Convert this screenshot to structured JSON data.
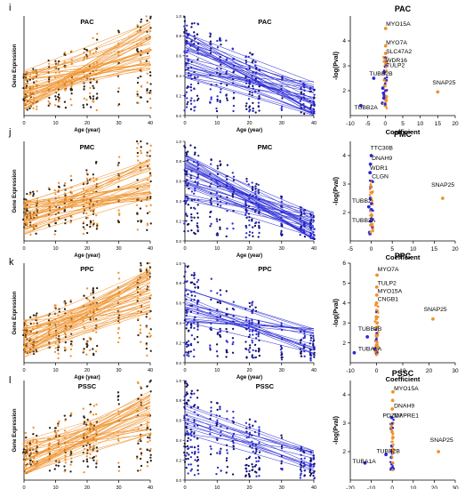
{
  "chart_data": [
    {
      "row": "i",
      "region": "PAC",
      "kind": "trend-increasing",
      "title": "PAC",
      "xlabel": "Age (year)",
      "ylabel": "Gene Expression",
      "xticks": [
        "0",
        "10",
        "20",
        "30",
        "40"
      ],
      "xlim": [
        0,
        40
      ],
      "ylim": [
        0,
        1
      ],
      "color": "#f0922e",
      "lines": 45,
      "start_range": [
        0.05,
        0.45
      ],
      "end_range": [
        0.45,
        0.95
      ]
    },
    {
      "row": "i",
      "region": "PAC",
      "kind": "trend-decreasing",
      "title": "PAC",
      "xlabel": "Age (year)",
      "ylabel": "",
      "xticks": [
        "0",
        "10",
        "20",
        "30",
        "40"
      ],
      "yticks": [
        "0.0",
        "0.2",
        "0.4",
        "0.6",
        "0.8",
        "1.0"
      ],
      "xlim": [
        0,
        40
      ],
      "ylim": [
        0,
        1
      ],
      "color": "#2a2ad6",
      "lines": 35,
      "start_range": [
        0.35,
        0.85
      ],
      "end_range": [
        0.0,
        0.35
      ]
    },
    {
      "row": "i",
      "region": "PAC",
      "type": "scatter",
      "title": "PAC",
      "xlabel": "Coefficient",
      "ylabel": "-log(Pval)",
      "xlim": [
        -10,
        20
      ],
      "ylim": [
        1,
        5
      ],
      "xticks": [
        "-10",
        "-5",
        "0",
        "5",
        "10",
        "15",
        "20"
      ],
      "yticks": [
        "2",
        "3",
        "4"
      ],
      "labels": [
        {
          "text": "MYO15A",
          "x": 0.2,
          "y": 4.6
        },
        {
          "text": "MYO7A",
          "x": 0.2,
          "y": 3.85
        },
        {
          "text": "SLC47A2",
          "x": 0.2,
          "y": 3.5
        },
        {
          "text": "WDR16",
          "x": 0.2,
          "y": 3.15
        },
        {
          "text": "TULP2",
          "x": 0.2,
          "y": 2.95
        },
        {
          "text": "TUBB2B",
          "x": -4.6,
          "y": 2.6
        },
        {
          "text": "TUBB2A",
          "x": -8.9,
          "y": 1.25
        },
        {
          "text": "SNAP25",
          "x": 13.5,
          "y": 2.25
        }
      ],
      "points": [
        {
          "x": 0.1,
          "y": 4.5,
          "c": "o"
        },
        {
          "x": 0.1,
          "y": 3.8,
          "c": "o"
        },
        {
          "x": 0.1,
          "y": 3.5,
          "c": "o"
        },
        {
          "x": 0.1,
          "y": 3.2,
          "c": "o"
        },
        {
          "x": 0.0,
          "y": 3.0,
          "c": "o"
        },
        {
          "x": -0.2,
          "y": 2.7,
          "c": "o"
        },
        {
          "x": 0.2,
          "y": 2.4,
          "c": "o"
        },
        {
          "x": -0.1,
          "y": 2.2,
          "c": "o"
        },
        {
          "x": 0.1,
          "y": 2.0,
          "c": "o"
        },
        {
          "x": -0.3,
          "y": 1.8,
          "c": "o"
        },
        {
          "x": 0.2,
          "y": 1.6,
          "c": "o"
        },
        {
          "x": 0.0,
          "y": 1.4,
          "c": "o"
        },
        {
          "x": -0.5,
          "y": 1.9,
          "c": "b"
        },
        {
          "x": -0.7,
          "y": 2.1,
          "c": "b"
        },
        {
          "x": -0.4,
          "y": 1.7,
          "c": "b"
        },
        {
          "x": -3.3,
          "y": 2.5,
          "c": "b"
        },
        {
          "x": -7.0,
          "y": 1.4,
          "c": "b"
        },
        {
          "x": -0.8,
          "y": 1.5,
          "c": "b"
        },
        {
          "x": 15.0,
          "y": 1.95,
          "c": "o"
        }
      ]
    },
    {
      "row": "j",
      "region": "PMC",
      "kind": "trend-increasing",
      "title": "PMC",
      "xlabel": "Age (year)",
      "ylabel": "Gene Expression",
      "xticks": [
        "0",
        "10",
        "20",
        "30",
        "40"
      ],
      "xlim": [
        0,
        40
      ],
      "ylim": [
        0,
        1
      ],
      "color": "#f0922e",
      "lines": 40,
      "start_range": [
        0.05,
        0.4
      ],
      "end_range": [
        0.4,
        0.85
      ]
    },
    {
      "row": "j",
      "region": "PMC",
      "kind": "trend-decreasing",
      "title": "PMC",
      "xlabel": "Age (year)",
      "ylabel": "",
      "xticks": [
        "0",
        "10",
        "20",
        "30",
        "40"
      ],
      "yticks": [
        "0.0",
        "0.2",
        "0.4",
        "0.6",
        "0.8",
        "1.0"
      ],
      "xlim": [
        0,
        40
      ],
      "ylim": [
        0,
        1
      ],
      "color": "#2a2ad6",
      "lines": 35,
      "start_range": [
        0.4,
        0.9
      ],
      "end_range": [
        0.0,
        0.3
      ]
    },
    {
      "row": "j",
      "region": "PMC",
      "type": "scatter",
      "title": "PMC",
      "xlabel": "Coefficient",
      "ylabel": "-log(Pval)",
      "xlim": [
        -5,
        20
      ],
      "ylim": [
        1,
        4.5
      ],
      "xticks": [
        "-5",
        "0",
        "5",
        "10",
        "15",
        "20"
      ],
      "yticks": [
        "2",
        "3",
        "4"
      ],
      "labels": [
        {
          "text": "TTC30B",
          "x": -0.2,
          "y": 4.2
        },
        {
          "text": "DNAH9",
          "x": 0.1,
          "y": 3.85
        },
        {
          "text": "WDR1",
          "x": -0.3,
          "y": 3.5
        },
        {
          "text": "CLGN",
          "x": 0.1,
          "y": 3.2
        },
        {
          "text": "TUBB2",
          "x": -4.6,
          "y": 2.35
        },
        {
          "text": "TUBB2A",
          "x": -4.6,
          "y": 1.65
        },
        {
          "text": "SNAP25",
          "x": 14.3,
          "y": 2.9
        }
      ],
      "points": [
        {
          "x": 0.0,
          "y": 4.0,
          "c": "b"
        },
        {
          "x": -0.2,
          "y": 3.7,
          "c": "b"
        },
        {
          "x": -0.3,
          "y": 3.4,
          "c": "b"
        },
        {
          "x": 0.0,
          "y": 3.1,
          "c": "o"
        },
        {
          "x": -0.1,
          "y": 2.9,
          "c": "b"
        },
        {
          "x": 0.1,
          "y": 2.7,
          "c": "o"
        },
        {
          "x": -0.2,
          "y": 2.5,
          "c": "b"
        },
        {
          "x": 0.2,
          "y": 2.3,
          "c": "o"
        },
        {
          "x": 0.0,
          "y": 2.1,
          "c": "b"
        },
        {
          "x": 0.1,
          "y": 1.9,
          "c": "o"
        },
        {
          "x": -0.1,
          "y": 1.7,
          "c": "b"
        },
        {
          "x": 0.3,
          "y": 1.5,
          "c": "o"
        },
        {
          "x": -0.4,
          "y": 1.3,
          "c": "b"
        },
        {
          "x": -0.6,
          "y": 2.2,
          "c": "b"
        },
        {
          "x": 17.0,
          "y": 2.5,
          "c": "o"
        }
      ]
    },
    {
      "row": "k",
      "region": "PPC",
      "kind": "trend-increasing",
      "title": "PPC",
      "xlabel": "Age (year)",
      "ylabel": "Gene Expression",
      "xticks": [
        "0",
        "10",
        "20",
        "30",
        "40"
      ],
      "xlim": [
        0,
        40
      ],
      "ylim": [
        0,
        1
      ],
      "color": "#f0922e",
      "lines": 45,
      "start_range": [
        0.05,
        0.45
      ],
      "end_range": [
        0.5,
        0.95
      ]
    },
    {
      "row": "k",
      "region": "PPC",
      "kind": "trend-decreasing",
      "title": "PPC",
      "xlabel": "Age (year)",
      "ylabel": "",
      "xticks": [
        "0",
        "10",
        "20",
        "30",
        "40"
      ],
      "yticks": [
        "0.0",
        "0.2",
        "0.4",
        "0.6",
        "0.8",
        "1.0"
      ],
      "xlim": [
        0,
        40
      ],
      "ylim": [
        0,
        1
      ],
      "color": "#2a2ad6",
      "lines": 20,
      "start_range": [
        0.4,
        0.75
      ],
      "end_range": [
        0.05,
        0.35
      ]
    },
    {
      "row": "k",
      "region": "PPC",
      "type": "scatter",
      "title": "PPC",
      "xlabel": "Coefficient",
      "ylabel": "-log(Pval)",
      "xlim": [
        -10,
        30
      ],
      "ylim": [
        1,
        6
      ],
      "xticks": [
        "-10",
        "0",
        "10",
        "20",
        "30"
      ],
      "yticks": [
        "2",
        "3",
        "4",
        "5",
        "6"
      ],
      "labels": [
        {
          "text": "MYO7A",
          "x": 0.4,
          "y": 5.6
        },
        {
          "text": "TULP2",
          "x": 0.4,
          "y": 4.9
        },
        {
          "text": "MYO15A",
          "x": 0.4,
          "y": 4.5
        },
        {
          "text": "CNGB1",
          "x": 0.4,
          "y": 4.1
        },
        {
          "text": "TUBB2B",
          "x": -7.0,
          "y": 2.6
        },
        {
          "text": "TUBA1A",
          "x": -7.0,
          "y": 1.6
        },
        {
          "text": "SNAP25",
          "x": 18.0,
          "y": 3.6
        }
      ],
      "points": [
        {
          "x": 0.2,
          "y": 5.4,
          "c": "o"
        },
        {
          "x": 0.1,
          "y": 4.8,
          "c": "o"
        },
        {
          "x": 0.1,
          "y": 4.4,
          "c": "o"
        },
        {
          "x": 0.0,
          "y": 4.0,
          "c": "o"
        },
        {
          "x": 0.2,
          "y": 3.6,
          "c": "o"
        },
        {
          "x": -0.1,
          "y": 3.3,
          "c": "o"
        },
        {
          "x": 0.2,
          "y": 3.0,
          "c": "o"
        },
        {
          "x": -0.3,
          "y": 2.7,
          "c": "b"
        },
        {
          "x": 0.1,
          "y": 2.4,
          "c": "o"
        },
        {
          "x": -0.2,
          "y": 2.1,
          "c": "b"
        },
        {
          "x": 0.0,
          "y": 1.9,
          "c": "o"
        },
        {
          "x": -0.6,
          "y": 1.7,
          "c": "b"
        },
        {
          "x": 0.3,
          "y": 1.5,
          "c": "o"
        },
        {
          "x": -3.5,
          "y": 2.3,
          "c": "b"
        },
        {
          "x": -8.5,
          "y": 1.5,
          "c": "b"
        },
        {
          "x": 21.5,
          "y": 3.2,
          "c": "o"
        }
      ]
    },
    {
      "row": "l",
      "region": "PSSC",
      "kind": "trend-increasing",
      "title": "PSSC",
      "xlabel": "Age (year)",
      "ylabel": "Gene Expression",
      "xticks": [
        "0",
        "10",
        "20",
        "30",
        "40"
      ],
      "xlim": [
        0,
        40
      ],
      "ylim": [
        0,
        1
      ],
      "color": "#f0922e",
      "lines": 40,
      "start_range": [
        0.05,
        0.4
      ],
      "end_range": [
        0.45,
        0.9
      ]
    },
    {
      "row": "l",
      "region": "PSSC",
      "kind": "trend-decreasing",
      "title": "PSSC",
      "xlabel": "Age (year)",
      "ylabel": "",
      "xticks": [
        "0",
        "10",
        "20",
        "30",
        "40"
      ],
      "yticks": [
        "0.0",
        "0.2",
        "0.4",
        "0.6",
        "0.8",
        "1.0"
      ],
      "xlim": [
        0,
        40
      ],
      "ylim": [
        0,
        1
      ],
      "color": "#2a2ad6",
      "lines": 15,
      "start_range": [
        0.45,
        0.8
      ],
      "end_range": [
        0.05,
        0.3
      ]
    },
    {
      "row": "l",
      "region": "PSSC",
      "type": "scatter",
      "title": "PSSC",
      "xlabel": "Coefficient",
      "ylabel": "-log(Pval)",
      "xlim": [
        -20,
        30
      ],
      "ylim": [
        1,
        4.5
      ],
      "xticks": [
        "-20",
        "-10",
        "0",
        "10",
        "20",
        "30"
      ],
      "yticks": [
        "2",
        "3",
        "4"
      ],
      "labels": [
        {
          "text": "MYO15A",
          "x": 0.8,
          "y": 4.15
        },
        {
          "text": "DNAH9",
          "x": 0.8,
          "y": 3.55
        },
        {
          "text": "PDZD7",
          "x": -4.6,
          "y": 3.2
        },
        {
          "text": "MAPRE1",
          "x": 0.8,
          "y": 3.2
        },
        {
          "text": "TUBB2B",
          "x": -7.5,
          "y": 1.95
        },
        {
          "text": "TUBA1A",
          "x": -19.0,
          "y": 1.6
        },
        {
          "text": "SNAP25",
          "x": 18.0,
          "y": 2.35
        }
      ],
      "points": [
        {
          "x": 0.3,
          "y": 4.1,
          "c": "o"
        },
        {
          "x": 0.2,
          "y": 3.8,
          "c": "o"
        },
        {
          "x": 0.0,
          "y": 3.5,
          "c": "o"
        },
        {
          "x": -0.3,
          "y": 3.2,
          "c": "b"
        },
        {
          "x": 0.2,
          "y": 3.0,
          "c": "o"
        },
        {
          "x": -0.1,
          "y": 2.7,
          "c": "o"
        },
        {
          "x": 0.3,
          "y": 2.5,
          "c": "o"
        },
        {
          "x": -0.2,
          "y": 2.2,
          "c": "b"
        },
        {
          "x": 0.1,
          "y": 2.0,
          "c": "o"
        },
        {
          "x": -0.4,
          "y": 1.8,
          "c": "b"
        },
        {
          "x": 0.2,
          "y": 1.6,
          "c": "o"
        },
        {
          "x": -0.1,
          "y": 1.4,
          "c": "b"
        },
        {
          "x": -3.0,
          "y": 1.9,
          "c": "b"
        },
        {
          "x": -13.0,
          "y": 1.6,
          "c": "b"
        },
        {
          "x": 22.0,
          "y": 2.0,
          "c": "o"
        }
      ]
    }
  ],
  "panel_letters": [
    "i",
    "j",
    "k",
    "l"
  ],
  "colors": {
    "orange": "#f0922e",
    "blue": "#2a2ad6",
    "dark": "#2b2117",
    "axis": "#000000"
  }
}
